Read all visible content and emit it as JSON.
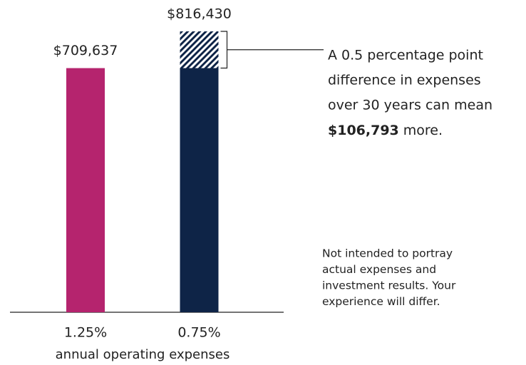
{
  "chart_data": {
    "type": "bar",
    "categories": [
      "1.25%",
      "0.75%"
    ],
    "values": [
      709637,
      816430
    ],
    "value_labels": [
      "$709,637",
      "$816,430"
    ],
    "colors": [
      "#b5246e",
      "#0e2447"
    ],
    "xlabel": "annual operating expenses",
    "annotation": {
      "lines": [
        "A 0.5 percentage point",
        "difference in expenses",
        "over 30 years can mean"
      ],
      "highlight": "$106,793",
      "after": "more."
    },
    "note": [
      "Not intended to portray",
      "actual expenses and",
      "investment results. Your",
      "experience will differ."
    ]
  }
}
